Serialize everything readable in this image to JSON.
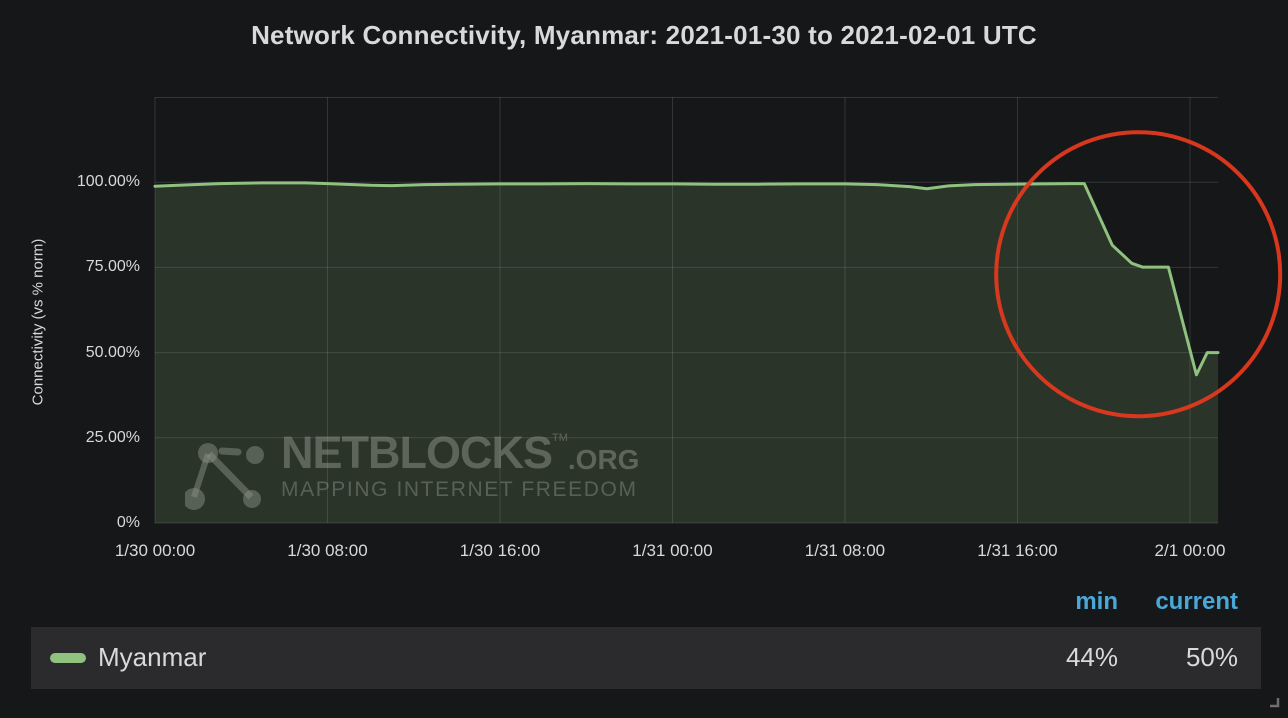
{
  "title": "Network Connectivity, Myanmar: 2021-01-30 to 2021-02-01 UTC",
  "colors": {
    "background": "#161719",
    "text": "#d8d9da",
    "grid": "rgba(255,255,255,0.13)",
    "series_green": "#8fc17f",
    "series_fill": "rgba(143,193,127,0.17)",
    "header_blue": "#4aa8d8",
    "annotation_red": "#e0391d",
    "legend_row_bg": "#2b2b2e"
  },
  "chart_data": {
    "type": "line",
    "title": "Network Connectivity, Myanmar: 2021-01-30 to 2021-02-01 UTC",
    "ylabel": "Connectivity (vs % norm)",
    "xlabel": "",
    "xlim_hours": [
      0,
      49.3
    ],
    "ylim": [
      0,
      125
    ],
    "grid": true,
    "legend_position": "bottom",
    "x_ticks": [
      {
        "hour": 0,
        "label": "1/30 00:00"
      },
      {
        "hour": 8,
        "label": "1/30 08:00"
      },
      {
        "hour": 16,
        "label": "1/30 16:00"
      },
      {
        "hour": 24,
        "label": "1/31 00:00"
      },
      {
        "hour": 32,
        "label": "1/31 08:00"
      },
      {
        "hour": 40,
        "label": "1/31 16:00"
      },
      {
        "hour": 48,
        "label": "2/1 00:00"
      }
    ],
    "y_ticks": [
      {
        "value": 100,
        "label": "100.00%"
      },
      {
        "value": 75,
        "label": "75.00%"
      },
      {
        "value": 50,
        "label": "50.00%"
      },
      {
        "value": 25,
        "label": "25.00%"
      },
      {
        "value": 0,
        "label": "0%"
      }
    ],
    "series": [
      {
        "name": "Myanmar",
        "color": "#8fc17f",
        "min": "44%",
        "current": "50%",
        "points_hour_percent": [
          [
            0,
            98.8
          ],
          [
            1.5,
            99.2
          ],
          [
            3,
            99.6
          ],
          [
            5,
            99.8
          ],
          [
            7,
            99.8
          ],
          [
            8,
            99.6
          ],
          [
            10,
            99.1
          ],
          [
            11,
            99.0
          ],
          [
            12.5,
            99.3
          ],
          [
            14,
            99.4
          ],
          [
            16,
            99.5
          ],
          [
            18,
            99.5
          ],
          [
            20,
            99.6
          ],
          [
            22,
            99.5
          ],
          [
            24,
            99.5
          ],
          [
            26,
            99.4
          ],
          [
            28,
            99.4
          ],
          [
            30,
            99.5
          ],
          [
            32,
            99.5
          ],
          [
            33.5,
            99.3
          ],
          [
            35,
            98.7
          ],
          [
            35.8,
            98.1
          ],
          [
            36.8,
            98.9
          ],
          [
            38,
            99.3
          ],
          [
            39.5,
            99.4
          ],
          [
            41,
            99.5
          ],
          [
            42.5,
            99.6
          ],
          [
            43.1,
            99.6
          ],
          [
            44.4,
            81.5
          ],
          [
            45.3,
            76.2
          ],
          [
            45.8,
            75.1
          ],
          [
            47,
            75.1
          ],
          [
            48.3,
            43.5
          ],
          [
            48.8,
            50
          ],
          [
            49.3,
            50
          ]
        ]
      }
    ],
    "annotation_circle": {
      "cx_hour": 45.6,
      "cy_percent": 73,
      "radius_px": 142,
      "color": "#e0391d",
      "stroke_width": 4
    }
  },
  "y_axis_title": "Connectivity (vs % norm)",
  "watermark": {
    "brand": "NETBLOCKS",
    "tm": "TM",
    "org": ".ORG",
    "tagline": "MAPPING INTERNET FREEDOM"
  },
  "legend": {
    "headers": {
      "min": "min",
      "current": "current"
    },
    "rows": [
      {
        "name": "Myanmar",
        "color": "#8fc17f",
        "min": "44%",
        "current": "50%"
      }
    ]
  }
}
